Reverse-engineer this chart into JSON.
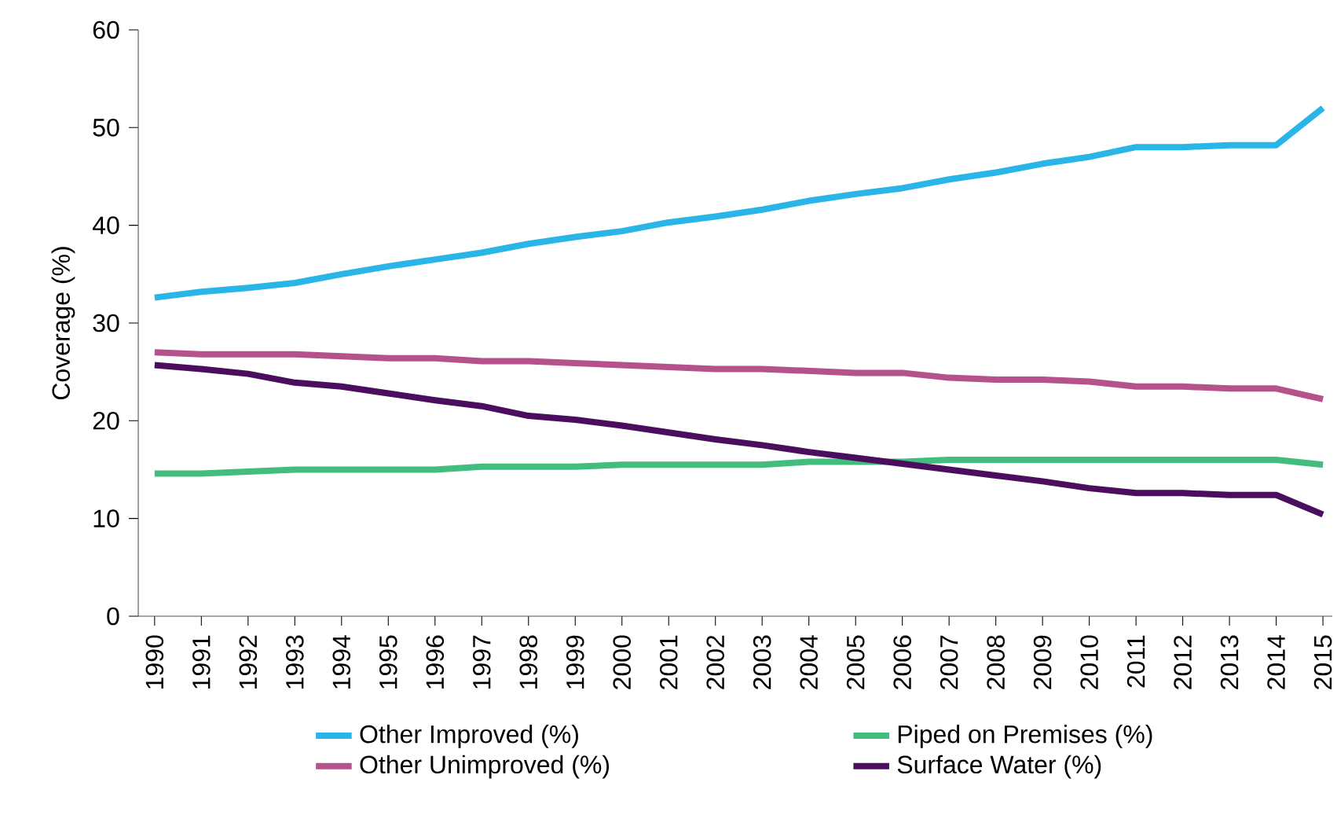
{
  "chart_data": {
    "type": "line",
    "ylabel": "Coverage (%)",
    "categories": [
      "1990",
      "1991",
      "1992",
      "1993",
      "1994",
      "1995",
      "1996",
      "1997",
      "1998",
      "1999",
      "2000",
      "2001",
      "2002",
      "2003",
      "2004",
      "2005",
      "2006",
      "2007",
      "2008",
      "2009",
      "2010",
      "2011",
      "2012",
      "2013",
      "2014",
      "2015"
    ],
    "series": [
      {
        "name": "Other Improved (%)",
        "color": "#29b5e8",
        "values": [
          32.6,
          33.2,
          33.6,
          34.1,
          35.0,
          35.8,
          36.5,
          37.2,
          38.1,
          38.8,
          39.4,
          40.3,
          40.9,
          41.6,
          42.5,
          43.2,
          43.8,
          44.7,
          45.4,
          46.3,
          47.0,
          48.0,
          48.0,
          48.2,
          48.2,
          52.0
        ]
      },
      {
        "name": "Piped on Premises (%)",
        "color": "#43bd7e",
        "values": [
          14.6,
          14.6,
          14.8,
          15.0,
          15.0,
          15.0,
          15.0,
          15.3,
          15.3,
          15.3,
          15.5,
          15.5,
          15.5,
          15.5,
          15.8,
          15.8,
          15.8,
          16.0,
          16.0,
          16.0,
          16.0,
          16.0,
          16.0,
          16.0,
          16.0,
          15.5
        ]
      },
      {
        "name": "Other Unimproved (%)",
        "color": "#b5528c",
        "values": [
          27.0,
          26.8,
          26.8,
          26.8,
          26.6,
          26.4,
          26.4,
          26.1,
          26.1,
          25.9,
          25.7,
          25.5,
          25.3,
          25.3,
          25.1,
          24.9,
          24.9,
          24.4,
          24.2,
          24.2,
          24.0,
          23.5,
          23.5,
          23.3,
          23.3,
          22.2
        ]
      },
      {
        "name": "Surface Water (%)",
        "color": "#4b0e5e",
        "values": [
          25.7,
          25.3,
          24.8,
          23.9,
          23.5,
          22.8,
          22.1,
          21.5,
          20.5,
          20.1,
          19.5,
          18.8,
          18.1,
          17.5,
          16.8,
          16.2,
          15.6,
          15.0,
          14.4,
          13.8,
          13.1,
          12.6,
          12.6,
          12.4,
          12.4,
          10.4
        ]
      }
    ],
    "ylim": [
      0,
      60
    ],
    "yticks": [
      0,
      10,
      20,
      30,
      40,
      50,
      60
    ],
    "grid": false,
    "legend": "bottom",
    "marker": "none",
    "line_style": "solid"
  }
}
